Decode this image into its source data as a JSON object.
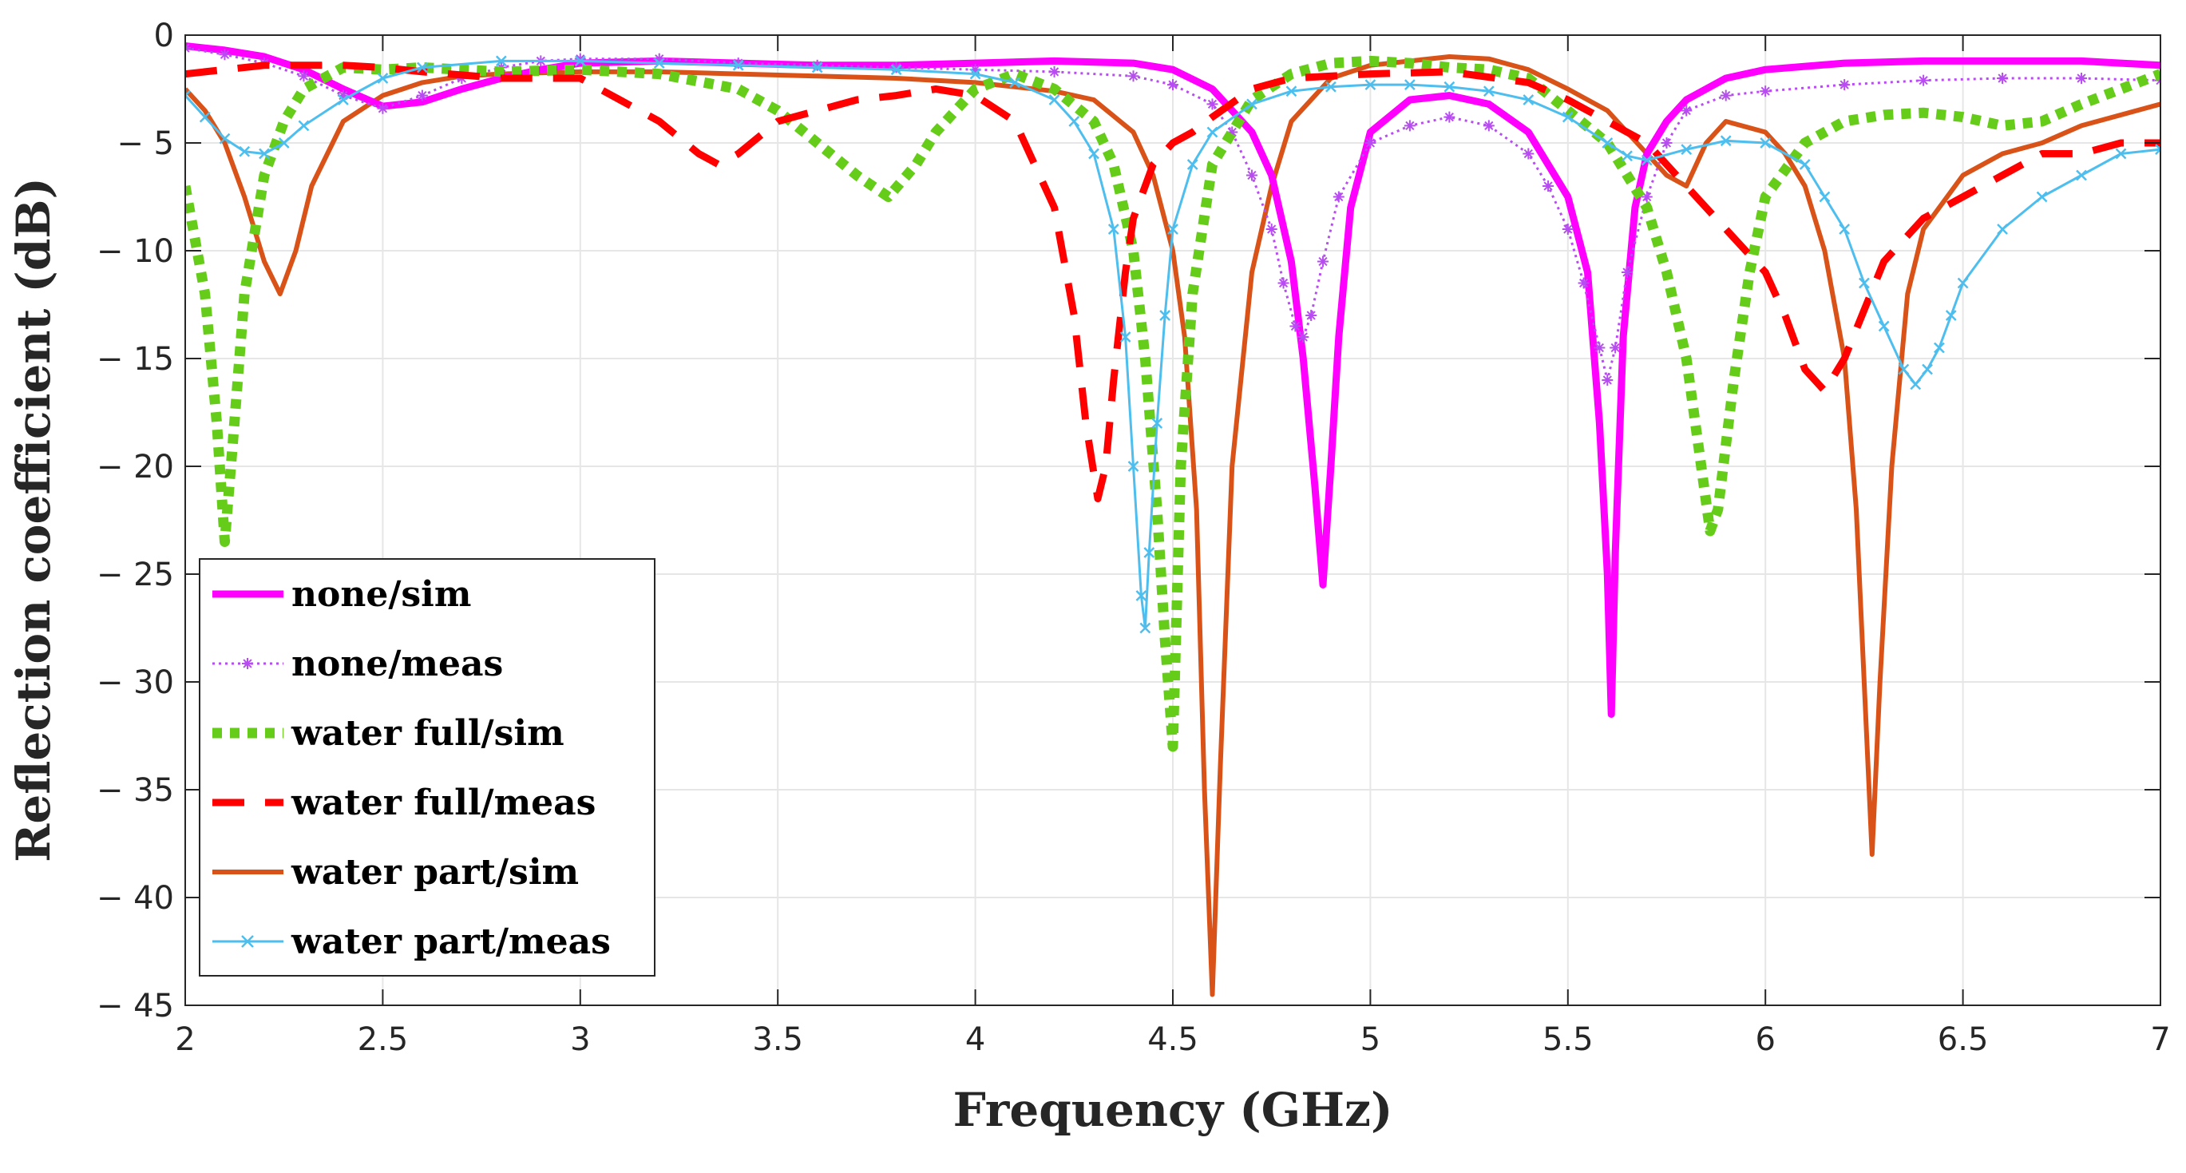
{
  "chart_data": {
    "type": "line",
    "title": "",
    "xlabel": "Frequency (GHz)",
    "ylabel": "Reflection coefficient (dB)",
    "xlim": [
      2,
      7
    ],
    "ylim": [
      -45,
      0
    ],
    "xticks": [
      2,
      2.5,
      3,
      3.5,
      4,
      4.5,
      5,
      5.5,
      6,
      6.5,
      7
    ],
    "xtick_labels": [
      "2",
      "2.5",
      "3",
      "3.5",
      "4",
      "4.5",
      "5",
      "5.5",
      "6",
      "6.5",
      "7"
    ],
    "yticks": [
      0,
      -5,
      -10,
      -15,
      -20,
      -25,
      -30,
      -35,
      -40,
      -45
    ],
    "ytick_labels": [
      "0",
      "− 5",
      "− 10",
      "− 15",
      "− 20",
      "− 25",
      "− 30",
      "− 35",
      "− 40",
      "− 45"
    ],
    "grid": true,
    "legend_position": "bottom-left",
    "series": [
      {
        "name": "none/sim",
        "color": "#FF00FF",
        "style": "solid",
        "marker": "none",
        "x": [
          2.0,
          2.1,
          2.2,
          2.3,
          2.4,
          2.5,
          2.6,
          2.7,
          2.8,
          2.9,
          3.0,
          3.2,
          3.4,
          3.6,
          3.8,
          4.0,
          4.2,
          4.4,
          4.5,
          4.6,
          4.7,
          4.75,
          4.8,
          4.83,
          4.86,
          4.88,
          4.9,
          4.92,
          4.95,
          5.0,
          5.1,
          5.2,
          5.3,
          5.4,
          5.5,
          5.55,
          5.58,
          5.6,
          5.61,
          5.62,
          5.64,
          5.67,
          5.7,
          5.75,
          5.8,
          5.9,
          6.0,
          6.2,
          6.4,
          6.6,
          6.8,
          7.0
        ],
        "y": [
          -0.5,
          -0.7,
          -1.0,
          -1.6,
          -2.5,
          -3.3,
          -3.1,
          -2.5,
          -2.0,
          -1.6,
          -1.3,
          -1.2,
          -1.3,
          -1.4,
          -1.4,
          -1.3,
          -1.2,
          -1.3,
          -1.6,
          -2.5,
          -4.5,
          -6.5,
          -10.5,
          -15.0,
          -21.0,
          -25.5,
          -20.0,
          -14.0,
          -8.0,
          -4.5,
          -3.0,
          -2.8,
          -3.2,
          -4.5,
          -7.5,
          -11.0,
          -18.0,
          -25.0,
          -31.5,
          -24.0,
          -14.0,
          -8.0,
          -5.5,
          -4.0,
          -3.0,
          -2.0,
          -1.6,
          -1.3,
          -1.2,
          -1.2,
          -1.2,
          -1.4
        ]
      },
      {
        "name": "none/meas",
        "color": "#B84CF2",
        "style": "dotted",
        "marker": "asterisk",
        "x": [
          2.0,
          2.1,
          2.2,
          2.3,
          2.4,
          2.5,
          2.6,
          2.7,
          2.8,
          2.9,
          3.0,
          3.2,
          3.4,
          3.6,
          3.8,
          4.0,
          4.2,
          4.4,
          4.5,
          4.6,
          4.65,
          4.7,
          4.75,
          4.78,
          4.81,
          4.83,
          4.85,
          4.88,
          4.92,
          5.0,
          5.1,
          5.2,
          5.3,
          5.4,
          5.45,
          5.5,
          5.54,
          5.58,
          5.6,
          5.62,
          5.65,
          5.7,
          5.75,
          5.8,
          5.9,
          6.0,
          6.2,
          6.4,
          6.6,
          6.8,
          7.0
        ],
        "y": [
          -0.6,
          -0.9,
          -1.3,
          -1.9,
          -2.8,
          -3.4,
          -2.8,
          -2.0,
          -1.5,
          -1.2,
          -1.1,
          -1.1,
          -1.3,
          -1.4,
          -1.5,
          -1.6,
          -1.7,
          -1.9,
          -2.3,
          -3.2,
          -4.5,
          -6.5,
          -9.0,
          -11.5,
          -13.5,
          -14.0,
          -13.0,
          -10.5,
          -7.5,
          -5.0,
          -4.2,
          -3.8,
          -4.2,
          -5.5,
          -7.0,
          -9.0,
          -11.5,
          -14.5,
          -16.0,
          -14.5,
          -11.0,
          -7.5,
          -5.0,
          -3.5,
          -2.8,
          -2.6,
          -2.3,
          -2.1,
          -2.0,
          -2.0,
          -2.1
        ]
      },
      {
        "name": "water full/sim",
        "color": "#66CC1A",
        "style": "dotted",
        "marker": "none",
        "x": [
          2.0,
          2.05,
          2.08,
          2.1,
          2.12,
          2.15,
          2.2,
          2.25,
          2.3,
          2.4,
          2.5,
          2.6,
          2.8,
          3.0,
          3.2,
          3.4,
          3.5,
          3.6,
          3.7,
          3.78,
          3.85,
          3.9,
          4.0,
          4.1,
          4.2,
          4.3,
          4.35,
          4.4,
          4.43,
          4.46,
          4.48,
          4.5,
          4.52,
          4.55,
          4.6,
          4.7,
          4.8,
          4.9,
          5.0,
          5.1,
          5.2,
          5.3,
          5.4,
          5.5,
          5.6,
          5.7,
          5.75,
          5.8,
          5.83,
          5.86,
          5.88,
          5.92,
          5.96,
          6.0,
          6.1,
          6.2,
          6.3,
          6.4,
          6.5,
          6.6,
          6.7,
          6.8,
          7.0
        ],
        "y": [
          -7.0,
          -12.0,
          -18.0,
          -23.5,
          -19.0,
          -12.0,
          -6.5,
          -4.0,
          -2.5,
          -1.5,
          -1.6,
          -1.5,
          -1.7,
          -1.6,
          -1.8,
          -2.5,
          -3.5,
          -5.0,
          -6.5,
          -7.5,
          -6.0,
          -4.5,
          -2.5,
          -1.8,
          -2.5,
          -4.0,
          -6.0,
          -10.0,
          -15.0,
          -22.0,
          -28.0,
          -33.0,
          -20.0,
          -12.0,
          -6.0,
          -3.0,
          -1.8,
          -1.3,
          -1.2,
          -1.3,
          -1.5,
          -1.6,
          -2.0,
          -3.5,
          -5.0,
          -8.0,
          -11.0,
          -15.0,
          -19.0,
          -23.0,
          -22.0,
          -16.0,
          -11.0,
          -7.5,
          -5.0,
          -4.0,
          -3.7,
          -3.6,
          -3.8,
          -4.2,
          -4.0,
          -3.2,
          -1.8
        ]
      },
      {
        "name": "water full/meas",
        "color": "#FF0000",
        "style": "dashed",
        "marker": "none",
        "x": [
          2.0,
          2.1,
          2.2,
          2.3,
          2.4,
          2.5,
          2.6,
          2.8,
          3.0,
          3.1,
          3.2,
          3.3,
          3.35,
          3.4,
          3.5,
          3.6,
          3.7,
          3.8,
          3.9,
          4.0,
          4.1,
          4.2,
          4.25,
          4.28,
          4.31,
          4.33,
          4.35,
          4.38,
          4.4,
          4.45,
          4.5,
          4.55,
          4.6,
          4.7,
          4.8,
          5.0,
          5.2,
          5.4,
          5.5,
          5.6,
          5.7,
          5.8,
          5.9,
          6.0,
          6.05,
          6.1,
          6.15,
          6.2,
          6.3,
          6.4,
          6.5,
          6.6,
          6.7,
          6.8,
          6.9,
          7.0
        ],
        "y": [
          -1.8,
          -1.6,
          -1.4,
          -1.4,
          -1.4,
          -1.5,
          -1.7,
          -2.0,
          -2.0,
          -3.0,
          -4.0,
          -5.5,
          -6.0,
          -5.5,
          -4.0,
          -3.5,
          -3.0,
          -2.8,
          -2.5,
          -2.8,
          -4.0,
          -8.0,
          -13.0,
          -18.0,
          -21.5,
          -20.0,
          -16.0,
          -11.0,
          -8.5,
          -6.0,
          -5.0,
          -4.5,
          -3.8,
          -2.5,
          -2.0,
          -1.8,
          -1.7,
          -2.2,
          -3.0,
          -4.0,
          -5.0,
          -7.0,
          -9.0,
          -11.0,
          -13.0,
          -15.5,
          -16.5,
          -15.0,
          -10.5,
          -8.5,
          -7.5,
          -6.5,
          -5.5,
          -5.5,
          -5.0,
          -5.0
        ]
      },
      {
        "name": "water part/sim",
        "color": "#D95319",
        "style": "solid",
        "marker": "none",
        "x": [
          2.0,
          2.05,
          2.1,
          2.15,
          2.2,
          2.24,
          2.28,
          2.32,
          2.4,
          2.5,
          2.6,
          2.7,
          2.8,
          3.0,
          3.2,
          3.4,
          3.6,
          3.8,
          4.0,
          4.1,
          4.2,
          4.3,
          4.4,
          4.45,
          4.5,
          4.53,
          4.56,
          4.58,
          4.6,
          4.62,
          4.65,
          4.7,
          4.75,
          4.8,
          4.9,
          5.0,
          5.1,
          5.2,
          5.3,
          5.4,
          5.5,
          5.6,
          5.65,
          5.7,
          5.75,
          5.8,
          5.85,
          5.9,
          6.0,
          6.05,
          6.1,
          6.15,
          6.2,
          6.23,
          6.25,
          6.27,
          6.29,
          6.32,
          6.36,
          6.4,
          6.5,
          6.6,
          6.7,
          6.8,
          7.0
        ],
        "y": [
          -2.5,
          -3.5,
          -5.0,
          -7.5,
          -10.5,
          -12.0,
          -10.0,
          -7.0,
          -4.0,
          -2.8,
          -2.2,
          -1.9,
          -1.8,
          -1.7,
          -1.7,
          -1.8,
          -1.9,
          -2.0,
          -2.2,
          -2.4,
          -2.6,
          -3.0,
          -4.5,
          -6.5,
          -10.0,
          -14.0,
          -22.0,
          -35.0,
          -44.5,
          -34.0,
          -20.0,
          -11.0,
          -7.0,
          -4.0,
          -2.0,
          -1.4,
          -1.2,
          -1.0,
          -1.1,
          -1.6,
          -2.5,
          -3.5,
          -4.5,
          -5.5,
          -6.5,
          -7.0,
          -5.0,
          -4.0,
          -4.5,
          -5.5,
          -7.0,
          -10.0,
          -15.0,
          -22.0,
          -30.0,
          -38.0,
          -30.0,
          -20.0,
          -12.0,
          -9.0,
          -6.5,
          -5.5,
          -5.0,
          -4.2,
          -3.2
        ]
      },
      {
        "name": "water part/meas",
        "color": "#4DBEEE",
        "style": "solid",
        "marker": "x",
        "x": [
          2.0,
          2.05,
          2.1,
          2.15,
          2.2,
          2.25,
          2.3,
          2.4,
          2.5,
          2.6,
          2.8,
          3.0,
          3.2,
          3.4,
          3.6,
          3.8,
          4.0,
          4.1,
          4.2,
          4.25,
          4.3,
          4.35,
          4.38,
          4.4,
          4.42,
          4.43,
          4.44,
          4.46,
          4.48,
          4.5,
          4.55,
          4.6,
          4.7,
          4.8,
          4.9,
          5.0,
          5.1,
          5.2,
          5.3,
          5.4,
          5.5,
          5.6,
          5.65,
          5.7,
          5.8,
          5.9,
          6.0,
          6.1,
          6.15,
          6.2,
          6.25,
          6.3,
          6.35,
          6.38,
          6.41,
          6.44,
          6.47,
          6.5,
          6.6,
          6.7,
          6.8,
          6.9,
          7.0
        ],
        "y": [
          -2.8,
          -3.8,
          -4.8,
          -5.4,
          -5.5,
          -5.0,
          -4.2,
          -3.0,
          -2.0,
          -1.5,
          -1.2,
          -1.2,
          -1.3,
          -1.4,
          -1.5,
          -1.6,
          -1.8,
          -2.2,
          -3.0,
          -4.0,
          -5.5,
          -9.0,
          -14.0,
          -20.0,
          -26.0,
          -27.5,
          -24.0,
          -18.0,
          -13.0,
          -9.0,
          -6.0,
          -4.5,
          -3.2,
          -2.6,
          -2.4,
          -2.3,
          -2.3,
          -2.4,
          -2.6,
          -3.0,
          -3.8,
          -5.0,
          -5.6,
          -5.8,
          -5.3,
          -4.9,
          -5.0,
          -6.0,
          -7.5,
          -9.0,
          -11.5,
          -13.5,
          -15.5,
          -16.2,
          -15.5,
          -14.5,
          -13.0,
          -11.5,
          -9.0,
          -7.5,
          -6.5,
          -5.5,
          -5.3
        ]
      }
    ]
  }
}
